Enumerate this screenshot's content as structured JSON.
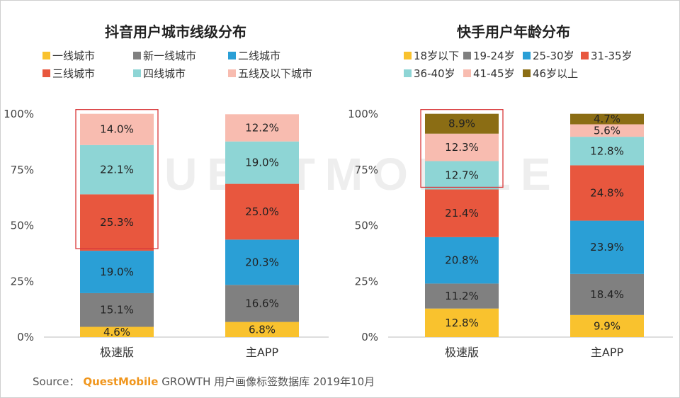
{
  "chart_data": [
    {
      "type": "bar",
      "stacked": true,
      "title": "抖音用户城市线级分布",
      "categories": [
        "极速版",
        "主APP"
      ],
      "yticks": [
        "0%",
        "25%",
        "50%",
        "75%",
        "100%"
      ],
      "ylim": [
        0,
        100
      ],
      "legend_position": "top",
      "series": [
        {
          "name": "一线城市",
          "color": "#f9c22e",
          "values": [
            4.6,
            6.8
          ]
        },
        {
          "name": "新一线城市",
          "color": "#808080",
          "values": [
            15.1,
            16.6
          ]
        },
        {
          "name": "二线城市",
          "color": "#2a9fd6",
          "values": [
            19.0,
            20.3
          ]
        },
        {
          "name": "三线城市",
          "color": "#e8573e",
          "values": [
            25.3,
            25.0
          ]
        },
        {
          "name": "四线城市",
          "color": "#8ed5d5",
          "values": [
            22.1,
            19.0
          ]
        },
        {
          "name": "五线及以下城市",
          "color": "#f8bcb0",
          "values": [
            14.0,
            12.2
          ]
        }
      ],
      "value_labels": [
        [
          "4.6%",
          "6.8%"
        ],
        [
          "15.1%",
          "16.6%"
        ],
        [
          "19.0%",
          "20.3%"
        ],
        [
          "25.3%",
          "25.0%"
        ],
        [
          "22.1%",
          "19.0%"
        ],
        [
          "14.0%",
          "12.2%"
        ]
      ],
      "highlight_box": {
        "category": "极速版",
        "from_series": 3,
        "to_series": 5,
        "color": "#d9383a"
      }
    },
    {
      "type": "bar",
      "stacked": true,
      "title": "快手用户年龄分布",
      "categories": [
        "极速版",
        "主APP"
      ],
      "yticks": [
        "0%",
        "25%",
        "50%",
        "75%",
        "100%"
      ],
      "ylim": [
        0,
        100
      ],
      "legend_position": "top",
      "series": [
        {
          "name": "18岁以下",
          "color": "#f9c22e",
          "values": [
            12.8,
            9.9
          ]
        },
        {
          "name": "19-24岁",
          "color": "#808080",
          "values": [
            11.2,
            18.4
          ]
        },
        {
          "name": "25-30岁",
          "color": "#2a9fd6",
          "values": [
            20.8,
            23.9
          ]
        },
        {
          "name": "31-35岁",
          "color": "#e8573e",
          "values": [
            21.4,
            24.8
          ]
        },
        {
          "name": "36-40岁",
          "color": "#8ed5d5",
          "values": [
            12.7,
            12.8
          ]
        },
        {
          "name": "41-45岁",
          "color": "#f8bcb0",
          "values": [
            12.3,
            5.6
          ]
        },
        {
          "name": "46岁以上",
          "color": "#8b6d14",
          "values": [
            8.9,
            4.7
          ]
        }
      ],
      "value_labels": [
        [
          "12.8%",
          "9.9%"
        ],
        [
          "11.2%",
          "18.4%"
        ],
        [
          "20.8%",
          "23.9%"
        ],
        [
          "21.4%",
          "24.8%"
        ],
        [
          "12.7%",
          "12.8%"
        ],
        [
          "12.3%",
          "5.6%"
        ],
        [
          "8.9%",
          "4.7%"
        ]
      ],
      "highlight_box": {
        "category": "极速版",
        "from_series": 4,
        "to_series": 6,
        "color": "#d9383a"
      }
    }
  ],
  "footer": {
    "source_label": "Source：",
    "brand": "QuestMobile",
    "rest": " GROWTH 用户画像标签数据库 2019年10月"
  },
  "watermark": "QUESTMOBILE"
}
